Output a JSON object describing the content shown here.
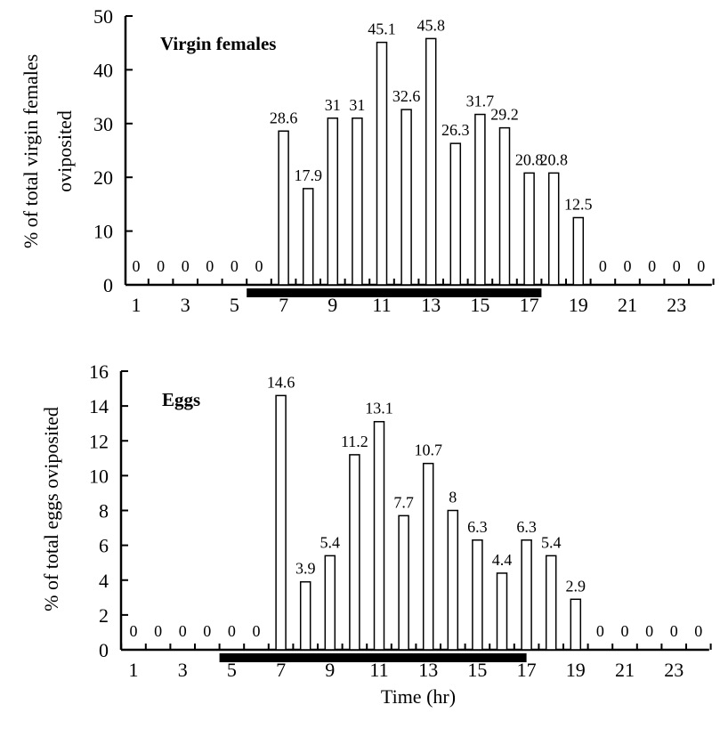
{
  "chart_data": [
    {
      "type": "bar",
      "title": "Virgin females",
      "ylabel": "% of total virgin females oviposited",
      "ylabel_lines": [
        "% of total virgin females",
        "oviposited"
      ],
      "xlabel": "",
      "ylim": [
        0,
        50
      ],
      "yticks": [
        0,
        10,
        20,
        30,
        40,
        50
      ],
      "x": [
        1,
        2,
        3,
        4,
        5,
        6,
        7,
        8,
        9,
        10,
        11,
        12,
        13,
        14,
        15,
        16,
        17,
        18,
        19,
        20,
        21,
        22,
        23,
        24
      ],
      "xtick_labels": [
        "1",
        "3",
        "5",
        "7",
        "9",
        "11",
        "13",
        "15",
        "17",
        "19",
        "21",
        "23"
      ],
      "values": [
        0,
        0,
        0,
        0,
        0,
        0,
        28.6,
        17.9,
        31,
        31,
        45.1,
        32.6,
        45.8,
        26.3,
        31.7,
        29.2,
        20.8,
        20.8,
        12.5,
        0,
        0,
        0,
        0,
        0
      ],
      "value_labels": [
        "0",
        "0",
        "0",
        "0",
        "0",
        "0",
        "28.6",
        "17.9",
        "31",
        "31",
        "45.1",
        "32.6",
        "45.8",
        "26.3",
        "31.7",
        "29.2",
        "20.8",
        "20.8",
        "12.5",
        "0",
        "0",
        "0",
        "0",
        "0"
      ],
      "dark_period": [
        5.5,
        17.5
      ]
    },
    {
      "type": "bar",
      "title": "Eggs",
      "ylabel": "% of total eggs oviposited",
      "ylabel_lines": [
        "% of total eggs oviposited"
      ],
      "xlabel": "Time (hr)",
      "ylim": [
        0,
        16
      ],
      "yticks": [
        0,
        2,
        4,
        6,
        8,
        10,
        12,
        14,
        16
      ],
      "x": [
        1,
        2,
        3,
        4,
        5,
        6,
        7,
        8,
        9,
        10,
        11,
        12,
        13,
        14,
        15,
        16,
        17,
        18,
        19,
        20,
        21,
        22,
        23,
        24
      ],
      "xtick_labels": [
        "1",
        "3",
        "5",
        "7",
        "9",
        "11",
        "13",
        "15",
        "17",
        "19",
        "21",
        "23"
      ],
      "values": [
        0,
        0,
        0,
        0,
        0,
        0,
        14.6,
        3.9,
        5.4,
        11.2,
        13.1,
        7.7,
        10.7,
        8,
        6.3,
        4.4,
        6.3,
        5.4,
        2.9,
        0,
        0,
        0,
        0,
        0
      ],
      "value_labels": [
        "0",
        "0",
        "0",
        "0",
        "0",
        "0",
        "14.6",
        "3.9",
        "5.4",
        "11.2",
        "13.1",
        "7.7",
        "10.7",
        "8",
        "6.3",
        "4.4",
        "6.3",
        "5.4",
        "2.9",
        "0",
        "0",
        "0",
        "0",
        "0"
      ],
      "dark_period": [
        4.5,
        17.0
      ]
    }
  ]
}
